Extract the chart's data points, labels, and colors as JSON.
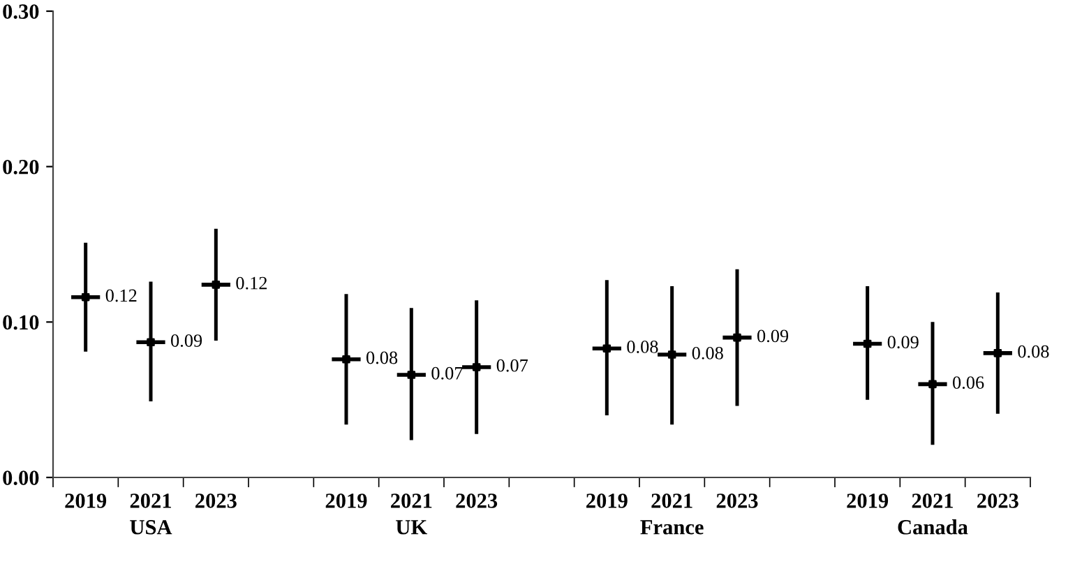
{
  "chart_data": {
    "type": "scatter",
    "categories": [
      "2019",
      "2021",
      "2023",
      null,
      "2019",
      "2021",
      "2023",
      null,
      "2019",
      "2021",
      "2023",
      null,
      "2019",
      "2021",
      "2023"
    ],
    "values": [
      0.116,
      0.087,
      0.124,
      null,
      0.076,
      0.066,
      0.071,
      null,
      0.083,
      0.079,
      0.09,
      null,
      0.086,
      0.06,
      0.08
    ],
    "errors": [
      [
        0.081,
        0.151
      ],
      [
        0.049,
        0.126
      ],
      [
        0.088,
        0.16
      ],
      null,
      [
        0.034,
        0.118
      ],
      [
        0.024,
        0.109
      ],
      [
        0.028,
        0.114
      ],
      null,
      [
        0.04,
        0.127
      ],
      [
        0.034,
        0.123
      ],
      [
        0.046,
        0.134
      ],
      null,
      [
        0.05,
        0.123
      ],
      [
        0.021,
        0.1
      ],
      [
        0.041,
        0.119
      ]
    ],
    "value_labels": [
      "0.12",
      "0.09",
      "0.12",
      null,
      "0.08",
      "0.07",
      "0.07",
      null,
      "0.08",
      "0.08",
      "0.09",
      null,
      "0.09",
      "0.06",
      "0.08"
    ],
    "color": "#000000",
    "annotations": [
      "USA",
      "UK",
      "France",
      "Canada"
    ],
    "ylim": [
      0,
      0.3
    ],
    "yticks": [
      {
        "value": 0,
        "label": "0.00"
      },
      {
        "value": 0.1,
        "label": "0.10"
      },
      {
        "value": 0.2,
        "label": "0.20"
      },
      {
        "value": 0.3,
        "label": "0.30"
      }
    ],
    "grid": false,
    "legend": false
  }
}
